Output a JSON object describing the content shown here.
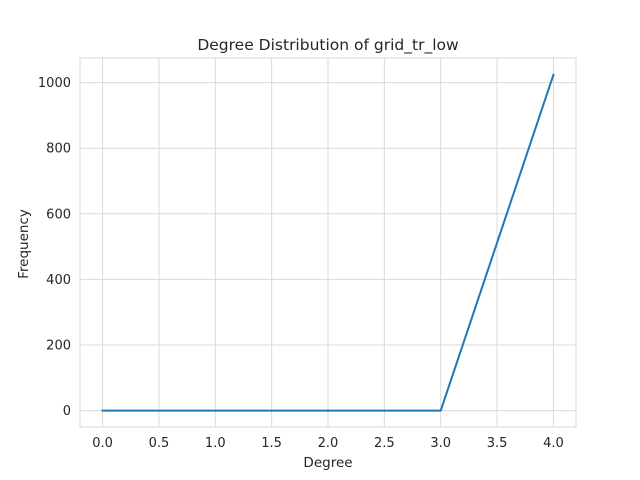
{
  "chart_data": {
    "type": "line",
    "title": "Degree Distribution of grid_tr_low",
    "xlabel": "Degree",
    "ylabel": "Frequency",
    "x": [
      0,
      1,
      2,
      3,
      4
    ],
    "series": [
      {
        "values": [
          0,
          0,
          0,
          0,
          1024
        ],
        "color": "#1f77b4"
      }
    ],
    "xlim": [
      -0.2,
      4.2
    ],
    "ylim": [
      -50,
      1075
    ],
    "xticks": [
      0.0,
      0.5,
      1.0,
      1.5,
      2.0,
      2.5,
      3.0,
      3.5,
      4.0
    ],
    "xtick_labels": [
      "0.0",
      "0.5",
      "1.0",
      "1.5",
      "2.0",
      "2.5",
      "3.0",
      "3.5",
      "4.0"
    ],
    "yticks": [
      0,
      200,
      400,
      600,
      800,
      1000
    ],
    "ytick_labels": [
      "0",
      "200",
      "400",
      "600",
      "800",
      "1000"
    ],
    "grid": true,
    "style": "whitegrid"
  }
}
